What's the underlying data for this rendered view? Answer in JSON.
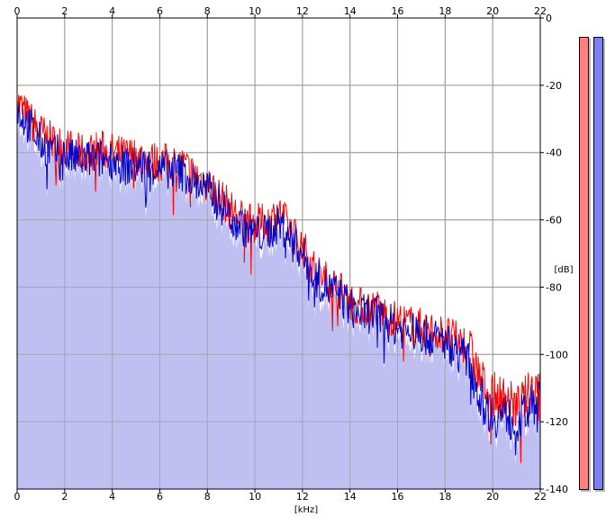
{
  "chart_data": {
    "type": "line",
    "xlabel": "[kHz]",
    "ylabel": "[dB]",
    "xlim": [
      0,
      22
    ],
    "ylim": [
      -140,
      0
    ],
    "x_ticks": [
      "0",
      "2",
      "4",
      "6",
      "8",
      "10",
      "12",
      "14",
      "16",
      "18",
      "20",
      "22"
    ],
    "y_ticks": [
      "0",
      "-20",
      "-40",
      "-60",
      "-80",
      "-100",
      "-120",
      "-140"
    ],
    "grid": true,
    "series": [
      {
        "name": "",
        "color": "#ff0000",
        "x": [
          0,
          0.5,
          1,
          1.5,
          2,
          2.5,
          3,
          3.5,
          4,
          4.5,
          5,
          5.5,
          6,
          6.5,
          7,
          7.5,
          8,
          8.5,
          9,
          9.5,
          10,
          10.5,
          11,
          11.5,
          12,
          12.5,
          13,
          13.5,
          14,
          14.5,
          15,
          15.5,
          16,
          16.5,
          17,
          17.5,
          18,
          18.5,
          19,
          19.5,
          20,
          20.5,
          21,
          21.5,
          22
        ],
        "y": [
          -25,
          -30,
          -34,
          -37,
          -38,
          -40,
          -40,
          -39,
          -40,
          -41,
          -41,
          -42,
          -43,
          -43,
          -44,
          -47,
          -49,
          -53,
          -57,
          -60,
          -61,
          -61,
          -58,
          -63,
          -68,
          -75,
          -78,
          -80,
          -84,
          -86,
          -86,
          -88,
          -90,
          -91,
          -92,
          -93,
          -94,
          -96,
          -97,
          -108,
          -112,
          -113,
          -116,
          -112,
          -107
        ]
      },
      {
        "name": "",
        "color": "#0000c8",
        "x": [
          0,
          0.5,
          1,
          1.5,
          2,
          2.5,
          3,
          3.5,
          4,
          4.5,
          5,
          5.5,
          6,
          6.5,
          7,
          7.5,
          8,
          8.5,
          9,
          9.5,
          10,
          10.5,
          11,
          11.5,
          12,
          12.5,
          13,
          13.5,
          14,
          14.5,
          15,
          15.5,
          16,
          16.5,
          17,
          17.5,
          18,
          18.5,
          19,
          19.5,
          20,
          20.5,
          21,
          21.5,
          22
        ],
        "y": [
          -27,
          -32,
          -37,
          -40,
          -41,
          -42,
          -42,
          -42,
          -42,
          -44,
          -44,
          -44,
          -45,
          -45,
          -46,
          -49,
          -51,
          -55,
          -59,
          -62,
          -64,
          -64,
          -61,
          -65,
          -70,
          -77,
          -80,
          -82,
          -86,
          -88,
          -88,
          -90,
          -92,
          -93,
          -94,
          -95,
          -96,
          -99,
          -102,
          -113,
          -118,
          -118,
          -120,
          -117,
          -112
        ]
      }
    ],
    "fill_color": "#bfbff2"
  },
  "meters": {
    "left_color": "#ff8080",
    "right_color": "#8080f0"
  }
}
